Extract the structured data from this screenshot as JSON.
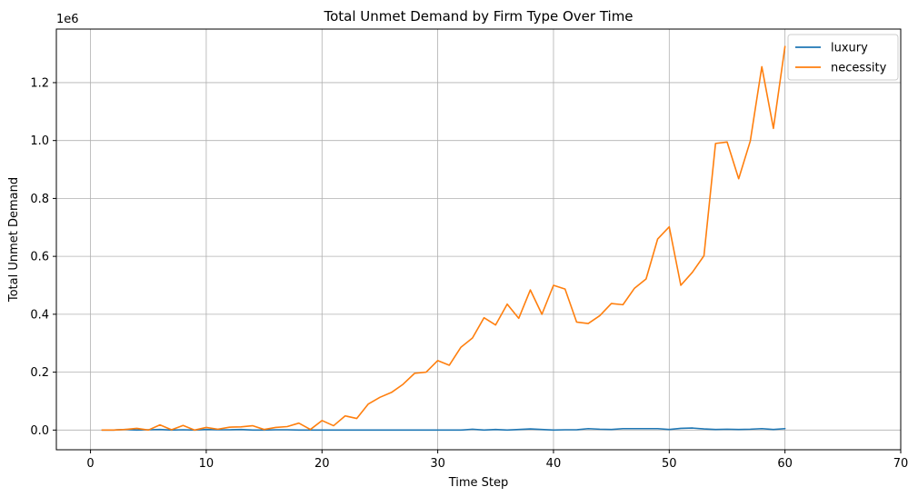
{
  "chart_data": {
    "type": "line",
    "title": "Total Unmet Demand by Firm Type Over Time",
    "xlabel": "Time Step",
    "ylabel": "Total Unmet Demand",
    "y_multiplier_label": "1e6",
    "y_multiplier": 1000000,
    "xlim": [
      -2.95,
      70
    ],
    "ylim": [
      -0.068,
      1.385
    ],
    "xticks": [
      0,
      10,
      20,
      30,
      40,
      50,
      60,
      70
    ],
    "yticks": [
      0.0,
      0.2,
      0.4,
      0.6,
      0.8,
      1.0,
      1.2
    ],
    "ytick_labels": [
      "0.0",
      "0.2",
      "0.4",
      "0.6",
      "0.8",
      "1.0",
      "1.2"
    ],
    "grid": true,
    "legend_position": "top-right",
    "x": [
      1,
      2,
      3,
      4,
      5,
      6,
      7,
      8,
      9,
      10,
      11,
      12,
      13,
      14,
      15,
      16,
      17,
      18,
      19,
      20,
      21,
      22,
      23,
      24,
      25,
      26,
      27,
      28,
      29,
      30,
      31,
      32,
      33,
      34,
      35,
      36,
      37,
      38,
      39,
      40,
      41,
      42,
      43,
      44,
      45,
      46,
      47,
      48,
      49,
      50,
      51,
      52,
      53,
      54,
      55,
      56,
      57,
      58,
      59,
      60
    ],
    "series": [
      {
        "name": "luxury",
        "color": "#1f77b4",
        "values": [
          0.0,
          0.0,
          0.002,
          0.0,
          0.001,
          0.002,
          0.0,
          0.001,
          0.0,
          0.002,
          0.001,
          0.001,
          0.002,
          0.0,
          0.0,
          0.001,
          0.001,
          0.0,
          0.0,
          0.0,
          0.0,
          0.0,
          0.0,
          0.0,
          0.0,
          0.0,
          0.0,
          0.0,
          0.0,
          0.0,
          0.0,
          0.0,
          0.003,
          0.0,
          0.002,
          0.0,
          0.002,
          0.004,
          0.002,
          0.0,
          0.001,
          0.001,
          0.005,
          0.003,
          0.002,
          0.005,
          0.005,
          0.005,
          0.005,
          0.002,
          0.006,
          0.007,
          0.004,
          0.002,
          0.003,
          0.002,
          0.003,
          0.005,
          0.002,
          0.005
        ]
      },
      {
        "name": "necessity",
        "color": "#ff7f0e",
        "values": [
          0.0,
          0.0,
          0.002,
          0.006,
          0.0,
          0.018,
          0.001,
          0.016,
          0.0,
          0.009,
          0.003,
          0.01,
          0.011,
          0.015,
          0.002,
          0.009,
          0.012,
          0.024,
          0.002,
          0.033,
          0.015,
          0.049,
          0.04,
          0.09,
          0.113,
          0.13,
          0.158,
          0.196,
          0.2,
          0.24,
          0.224,
          0.286,
          0.318,
          0.388,
          0.363,
          0.435,
          0.386,
          0.484,
          0.4,
          0.5,
          0.487,
          0.373,
          0.368,
          0.395,
          0.437,
          0.433,
          0.49,
          0.522,
          0.66,
          0.702,
          0.5,
          0.545,
          0.602,
          0.99,
          0.995,
          0.868,
          0.998,
          1.255,
          1.042,
          1.325
        ]
      }
    ]
  }
}
